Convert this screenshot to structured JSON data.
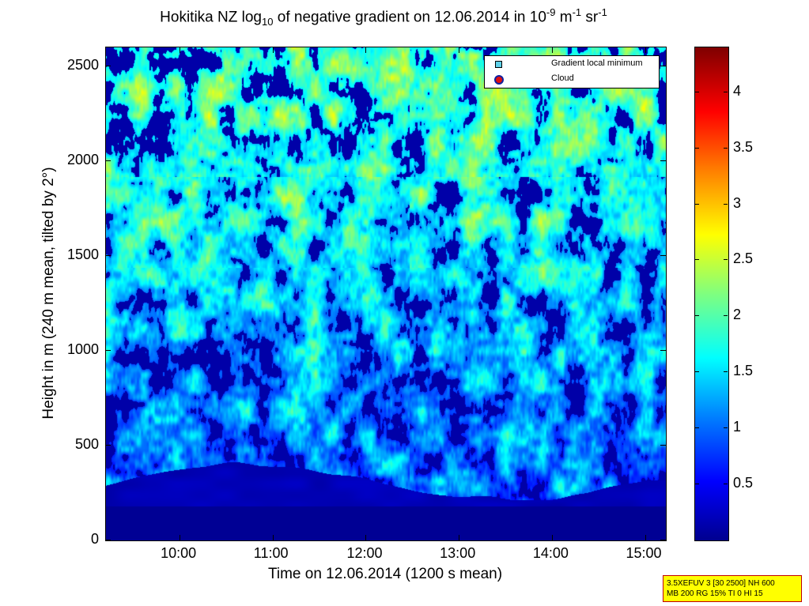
{
  "chart_data": {
    "type": "heatmap",
    "title": {
      "prefix": "Hokitika NZ log",
      "sub": "10",
      "middle": " of negative gradient on 12.06.2014 in 10",
      "sup1": "-9",
      "unit1": " m",
      "sup2": "-1",
      "unit2": " sr",
      "sup3": "-1"
    },
    "xlabel": "Time on 12.06.2014 (1200 s mean)",
    "ylabel": "Height in m (240 m mean, tilted by 2°)",
    "x_ticks": [
      "10:00",
      "11:00",
      "12:00",
      "13:00",
      "14:00",
      "15:00"
    ],
    "x_range": [
      "09:12",
      "15:13"
    ],
    "y_ticks": [
      0,
      500,
      1000,
      1500,
      2000,
      2500
    ],
    "y_range": [
      0,
      2600
    ],
    "colorbar": {
      "ticks": [
        "0.5",
        "1",
        "1.5",
        "2",
        "2.5",
        "3",
        "3.5",
        "4"
      ],
      "range": [
        0,
        4.4
      ],
      "colormap": "jet"
    },
    "legend": {
      "position": "top-right",
      "entries": [
        {
          "label": "Gradient local minimum",
          "color": "#5fd0e8",
          "marker": "square"
        },
        {
          "label": "Cloud",
          "color": "#e01010",
          "marker": "circle"
        }
      ]
    },
    "info_box": {
      "line1": "3.5XEFUV 3 [30 2500] NH 600",
      "line2": "MB 200 RG 15% TI 0 HI 15"
    }
  }
}
